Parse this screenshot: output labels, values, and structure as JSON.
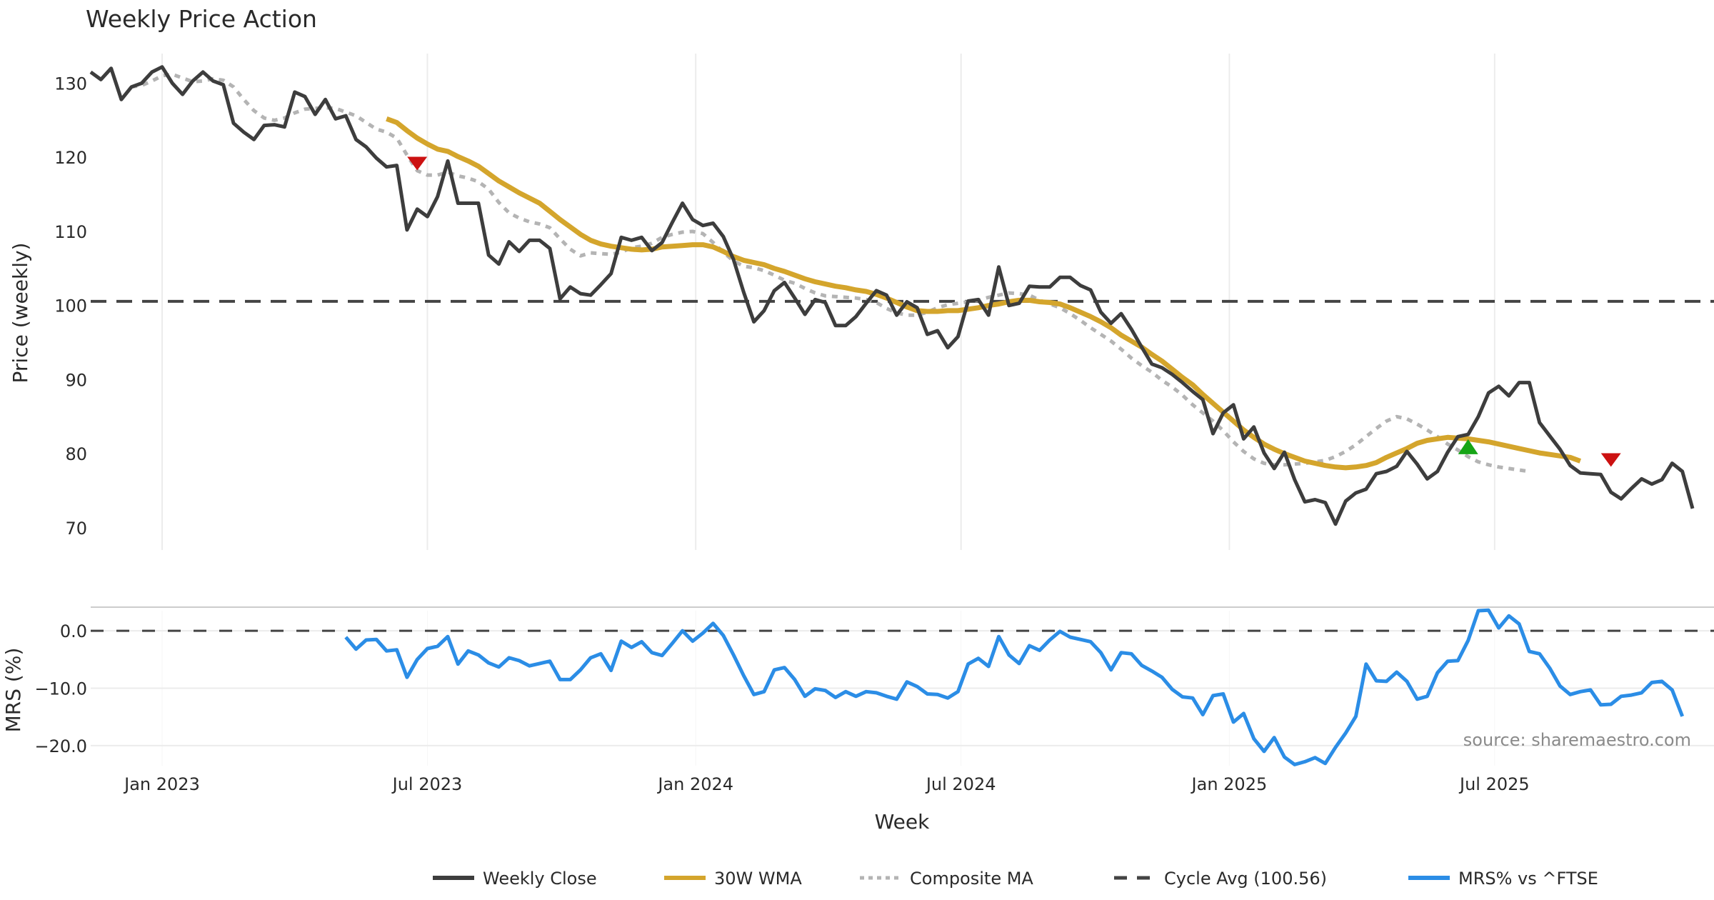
{
  "title": "Weekly Price Action",
  "colors": {
    "close": "#3d3d3d",
    "wma": "#d4a52c",
    "composite": "#b4b4b4",
    "cycle": "#444444",
    "mrs": "#2b8de6",
    "sell": "#cc1111",
    "buy": "#16a516",
    "grid": "#ececec",
    "separator": "#cccccc"
  },
  "source": "source: sharemaestro.com",
  "chart_data": [
    {
      "type": "line",
      "title": "Weekly Price Action",
      "xlabel": "Week",
      "ylabel": "Price (weekly)",
      "ylim": [
        67,
        134
      ],
      "yticks": [
        70,
        80,
        90,
        100,
        110,
        120,
        130
      ],
      "x_start_week_offset": -7,
      "x_ticks": [
        {
          "label": "Jan 2023",
          "week": 0
        },
        {
          "label": "Jul 2023",
          "week": 26
        },
        {
          "label": "Jan 2024",
          "week": 52.3
        },
        {
          "label": "Jul 2024",
          "week": 78.3
        },
        {
          "label": "Jan 2025",
          "week": 104.6
        },
        {
          "label": "Jul 2025",
          "week": 130.6
        }
      ],
      "grid": true,
      "cycle_avg": 100.56,
      "series": [
        {
          "name": "Weekly Close",
          "start_index": 0,
          "values": [
            131.5,
            130.5,
            132,
            127.8,
            129.5,
            130,
            131.5,
            132.2,
            130,
            128.5,
            130.3,
            131.5,
            130.3,
            129.8,
            124.6,
            123.4,
            122.4,
            124.3,
            124.4,
            124.1,
            128.8,
            128.2,
            125.8,
            127.8,
            125.2,
            125.6,
            122.4,
            121.4,
            119.9,
            118.7,
            118.9,
            110.2,
            113,
            112,
            114.7,
            119.5,
            113.8,
            113.8,
            113.8,
            106.8,
            105.6,
            108.6,
            107.3,
            108.8,
            108.8,
            107.7,
            100.9,
            102.5,
            101.6,
            101.4,
            102.8,
            104.3,
            109.2,
            108.8,
            109.2,
            107.4,
            108.5,
            111.2,
            113.8,
            111.6,
            110.8,
            111.1,
            109.3,
            106.2,
            101.8,
            97.8,
            99.3,
            102,
            103.1,
            101,
            98.8,
            100.8,
            100.4,
            97.3,
            97.3,
            98.5,
            100.3,
            102,
            101.4,
            98.7,
            100.5,
            99.7,
            96.1,
            96.6,
            94.3,
            95.8,
            100.6,
            100.8,
            98.7,
            105.2,
            100,
            100.3,
            102.6,
            102.5,
            102.5,
            103.8,
            103.8,
            102.7,
            102.1,
            99.1,
            97.6,
            98.9,
            96.8,
            94.4,
            92.1,
            91.6,
            90.7,
            89.6,
            88.4,
            87.3,
            82.7,
            85.5,
            86.6,
            82,
            83.6,
            80.1,
            78,
            80.2,
            76.5,
            73.5,
            73.8,
            73.4,
            70.5,
            73.6,
            74.7,
            75.2,
            77.3,
            77.6,
            78.3,
            80.3,
            78.6,
            76.6,
            77.6,
            80.2,
            82.3,
            82.6,
            85,
            88.2,
            89.1,
            87.8,
            89.6,
            89.6,
            84.2,
            82.4,
            80.6,
            78.4,
            77.4,
            77.3,
            77.2,
            74.8,
            73.9,
            75.3,
            76.6,
            75.9,
            76.5,
            78.7,
            77.6,
            72.6
          ]
        },
        {
          "name": "30W WMA",
          "start_index": 29,
          "values": [
            125.2,
            124.7,
            123.6,
            122.6,
            121.8,
            121.1,
            120.8,
            120.1,
            119.5,
            118.8,
            117.8,
            116.8,
            116,
            115.2,
            114.5,
            113.8,
            112.7,
            111.6,
            110.6,
            109.6,
            108.8,
            108.3,
            108,
            107.8,
            107.6,
            107.5,
            107.6,
            107.9,
            108,
            108.1,
            108.2,
            108.2,
            107.9,
            107.3,
            106.6,
            106.1,
            105.8,
            105.5,
            105,
            104.6,
            104.1,
            103.6,
            103.2,
            102.9,
            102.6,
            102.4,
            102.1,
            101.9,
            101.5,
            101,
            100.4,
            99.8,
            99.3,
            99.2,
            99.2,
            99.3,
            99.3,
            99.5,
            99.7,
            100,
            100.2,
            100.5,
            100.7,
            100.7,
            100.5,
            100.4,
            100.2,
            99.7,
            99.1,
            98.5,
            97.8,
            97,
            96,
            95.2,
            94.4,
            93.4,
            92.5,
            91.4,
            90.3,
            89.3,
            88,
            86.8,
            85.6,
            84.4,
            83.2,
            82.2,
            81.3,
            80.6,
            80,
            79.5,
            79,
            78.7,
            78.4,
            78.2,
            78.1,
            78.2,
            78.4,
            78.8,
            79.5,
            80.1,
            80.7,
            81.4,
            81.8,
            82,
            82.2,
            82.1,
            82,
            81.8,
            81.6,
            81.3,
            81,
            80.7,
            80.4,
            80.1,
            79.9,
            79.7,
            79.5,
            79
          ]
        },
        {
          "name": "Composite MA",
          "start_index": 4,
          "values": [
            129.5,
            129.7,
            130.3,
            131,
            131.2,
            130.7,
            130.2,
            130.3,
            130.6,
            130.4,
            129.5,
            127.8,
            126.3,
            125.3,
            125,
            125.3,
            126,
            126.5,
            126.6,
            126.7,
            126.6,
            126.1,
            125.6,
            124.7,
            123.8,
            123.4,
            122.6,
            120.3,
            118.2,
            117.6,
            117.6,
            118,
            117.5,
            117.2,
            116.7,
            115.7,
            113.9,
            112.5,
            111.8,
            111.3,
            111,
            110.5,
            109,
            107.6,
            106.7,
            107.1,
            107,
            106.9,
            107.2,
            107.8,
            108,
            108.4,
            109.2,
            109.6,
            109.9,
            110,
            109.7,
            108.5,
            107.2,
            106,
            105.3,
            105.1,
            104.7,
            104.1,
            103.4,
            103,
            102.3,
            101.7,
            101.3,
            101.2,
            101.1,
            101,
            100.8,
            100.4,
            99.6,
            99,
            98.7,
            98.7,
            99.1,
            99.7,
            100.1,
            100.3,
            100.5,
            100.7,
            101.1,
            101.4,
            101.7,
            101.6,
            101.4,
            100.7,
            100.2,
            99.7,
            98.9,
            98,
            97,
            96.1,
            95.2,
            94.1,
            92.9,
            91.9,
            91,
            89.9,
            89,
            87.9,
            86.6,
            85.5,
            84.4,
            83.1,
            81.6,
            80.3,
            79.3,
            78.7,
            78.5,
            78.5,
            78.6,
            78.7,
            78.9,
            79.1,
            79.6,
            80.3,
            81.2,
            82.3,
            83.4,
            84.4,
            85,
            84.7,
            84,
            83.2,
            82.3,
            81.3,
            80.5,
            79.6,
            78.9,
            78.5,
            78.2,
            78,
            77.8,
            77.6
          ]
        }
      ],
      "signals": [
        {
          "type": "sell",
          "index": 32,
          "value": 119.2
        },
        {
          "type": "buy",
          "index": 135,
          "value": 80.9
        },
        {
          "type": "sell",
          "index": 149,
          "value": 79.2
        }
      ]
    },
    {
      "type": "line",
      "ylabel": "MRS (%)",
      "ylim": [
        -23.5,
        3.5
      ],
      "yticks": [
        0.0,
        -10.0,
        -20.0
      ],
      "ytick_labels": [
        "0.0",
        "−10.0",
        "−20.0"
      ],
      "zero_line": true,
      "series": [
        {
          "name": "MRS% vs ^FTSE",
          "start_index": 25,
          "values": [
            -1.1,
            -3.2,
            -1.6,
            -1.5,
            -3.5,
            -3.3,
            -8.1,
            -5,
            -3.1,
            -2.7,
            -1,
            -5.8,
            -3.5,
            -4.2,
            -5.6,
            -6.3,
            -4.7,
            -5.2,
            -6.1,
            -5.7,
            -5.3,
            -8.5,
            -8.5,
            -6.8,
            -4.7,
            -4,
            -6.9,
            -1.8,
            -2.9,
            -1.9,
            -3.8,
            -4.3,
            -2.2,
            0,
            -1.8,
            -0.4,
            1.3,
            -0.8,
            -4.2,
            -7.8,
            -11.1,
            -10.6,
            -6.8,
            -6.4,
            -8.5,
            -11.4,
            -10.1,
            -10.4,
            -11.6,
            -10.6,
            -11.4,
            -10.6,
            -10.8,
            -11.4,
            -11.9,
            -8.9,
            -9.7,
            -11,
            -11.1,
            -11.7,
            -10.6,
            -5.8,
            -4.8,
            -6.2,
            -1,
            -4.2,
            -5.7,
            -2.6,
            -3.4,
            -1.6,
            -0.1,
            -1.1,
            -1.5,
            -1.9,
            -3.8,
            -6.8,
            -3.8,
            -4,
            -6,
            -7,
            -8.1,
            -10.2,
            -11.5,
            -11.7,
            -14.6,
            -11.3,
            -11,
            -15.9,
            -14.4,
            -18.8,
            -21,
            -18.6,
            -22,
            -23.3,
            -22.8,
            -22.1,
            -23.1,
            -20.3,
            -17.8,
            -14.9,
            -5.8,
            -8.7,
            -8.8,
            -7.2,
            -8.8,
            -11.9,
            -11.4,
            -7.3,
            -5.3,
            -5.2,
            -1.7,
            3.5,
            3.6,
            0.5,
            2.6,
            1.2,
            -3.6,
            -4,
            -6.5,
            -9.6,
            -11.1,
            -10.6,
            -10.3,
            -12.9,
            -12.8,
            -11.4,
            -11.2,
            -10.8,
            -9,
            -8.8,
            -10.3,
            -14.9
          ]
        }
      ]
    }
  ],
  "legend": [
    {
      "label": "Weekly Close",
      "style": "solid",
      "color_key": "close"
    },
    {
      "label": "30W WMA",
      "style": "solid",
      "color_key": "wma"
    },
    {
      "label": "Composite MA",
      "style": "dotted",
      "color_key": "composite"
    },
    {
      "label": "Cycle Avg (100.56)",
      "style": "dashed",
      "color_key": "cycle"
    },
    {
      "label": "MRS% vs ^FTSE",
      "style": "solid",
      "color_key": "mrs"
    }
  ]
}
